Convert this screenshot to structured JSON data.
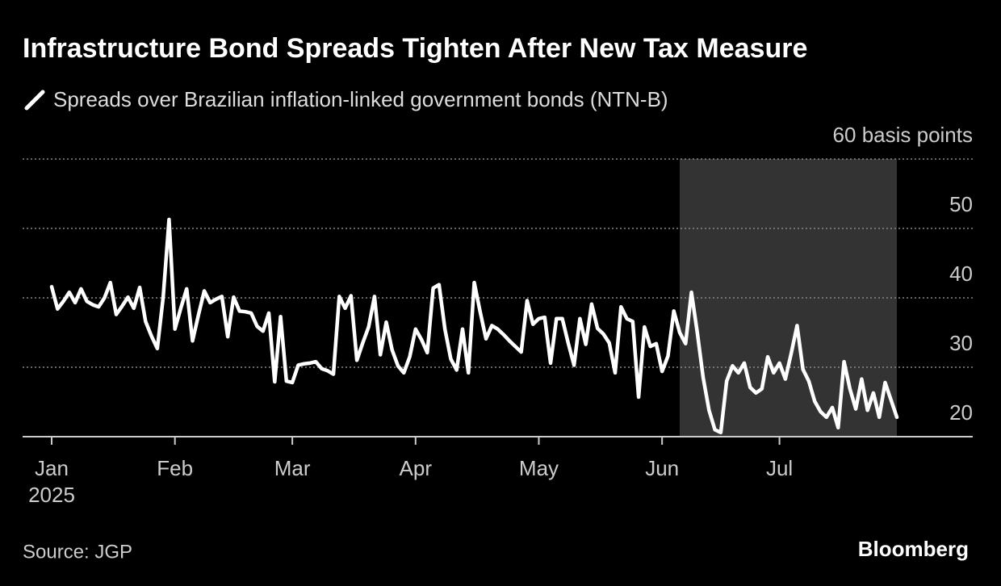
{
  "chart_data": {
    "type": "line",
    "title": "Infrastructure Bond Spreads Tighten After New Tax Measure",
    "source": "Source: JGP",
    "brand": "Bloomberg",
    "x_year_label": "2025",
    "categories": [
      "Jan",
      null,
      null,
      null,
      null,
      null,
      null,
      null,
      null,
      null,
      null,
      null,
      null,
      null,
      null,
      null,
      null,
      null,
      null,
      null,
      null,
      "Feb",
      null,
      null,
      null,
      null,
      null,
      null,
      null,
      null,
      null,
      null,
      null,
      null,
      null,
      null,
      null,
      null,
      null,
      null,
      null,
      "Mar",
      null,
      null,
      null,
      null,
      null,
      null,
      null,
      null,
      null,
      null,
      null,
      null,
      null,
      null,
      null,
      null,
      null,
      null,
      null,
      null,
      "Apr",
      null,
      null,
      null,
      null,
      null,
      null,
      null,
      null,
      null,
      null,
      null,
      null,
      null,
      null,
      null,
      null,
      null,
      null,
      null,
      null,
      "May",
      null,
      null,
      null,
      null,
      null,
      null,
      null,
      null,
      null,
      null,
      null,
      null,
      null,
      null,
      null,
      null,
      null,
      null,
      null,
      null,
      "Jun",
      null,
      null,
      null,
      null,
      null,
      null,
      null,
      null,
      null,
      null,
      null,
      null,
      null,
      null,
      null,
      null,
      null,
      null,
      null,
      "Jul",
      null,
      null,
      null,
      null,
      null,
      null,
      null,
      null,
      null,
      null,
      null,
      null,
      null,
      null,
      null,
      null,
      null,
      null,
      null,
      null
    ],
    "series": [
      {
        "name": "Spreads over Brazilian inflation-linked government bonds (NTN-B)",
        "color": "#ffffff",
        "values": [
          41.6,
          38.4,
          39.5,
          40.8,
          39.3,
          41.3,
          39.5,
          39.0,
          38.7,
          40.0,
          42.2,
          37.6,
          38.8,
          40.1,
          38.5,
          41.5,
          36.6,
          34.5,
          32.7,
          40.1,
          51.3,
          35.5,
          38.5,
          41.3,
          33.8,
          37.5,
          41.0,
          39.3,
          39.8,
          40.2,
          34.4,
          40.1,
          38.1,
          38.0,
          37.8,
          35.9,
          35.2,
          37.8,
          27.9,
          37.3,
          28.0,
          27.8,
          30.3,
          30.5,
          30.6,
          30.8,
          29.8,
          29.5,
          29.0,
          40.2,
          38.5,
          40.3,
          31.0,
          33.5,
          35.8,
          40.2,
          31.8,
          36.5,
          32.5,
          30.2,
          29.2,
          31.5,
          35.5,
          34.0,
          32.1,
          41.4,
          41.9,
          35.5,
          31.2,
          29.6,
          35.5,
          29.2,
          42.2,
          38.0,
          34.1,
          36.0,
          35.5,
          34.7,
          33.8,
          33.0,
          32.2,
          39.6,
          36.2,
          37.0,
          37.2,
          30.6,
          37.0,
          37.0,
          33.5,
          30.3,
          37.0,
          33.3,
          39.1,
          35.6,
          34.8,
          33.5,
          29.2,
          38.7,
          37.0,
          36.6,
          25.7,
          35.8,
          33.0,
          33.4,
          29.4,
          31.6,
          38.1,
          35.0,
          33.4,
          40.8,
          35.0,
          28.5,
          23.8,
          21.0,
          20.6,
          28.0,
          30.2,
          29.2,
          30.6,
          27.1,
          26.3,
          26.9,
          31.5,
          29.2,
          30.6,
          28.3,
          32.0,
          36.0,
          29.7,
          28.0,
          25.1,
          23.6,
          22.8,
          24.2,
          21.3,
          30.8,
          26.9,
          24.0,
          28.3,
          23.8,
          26.3,
          22.8,
          27.8,
          25.3,
          22.8
        ]
      }
    ],
    "highlight": {
      "from": 107,
      "to": 144,
      "color": "#333333"
    },
    "ylim": [
      20,
      60
    ],
    "yticks": [
      20,
      30,
      40,
      50,
      {
        "value": 60,
        "label": "60 basis points"
      }
    ],
    "grid": true
  }
}
